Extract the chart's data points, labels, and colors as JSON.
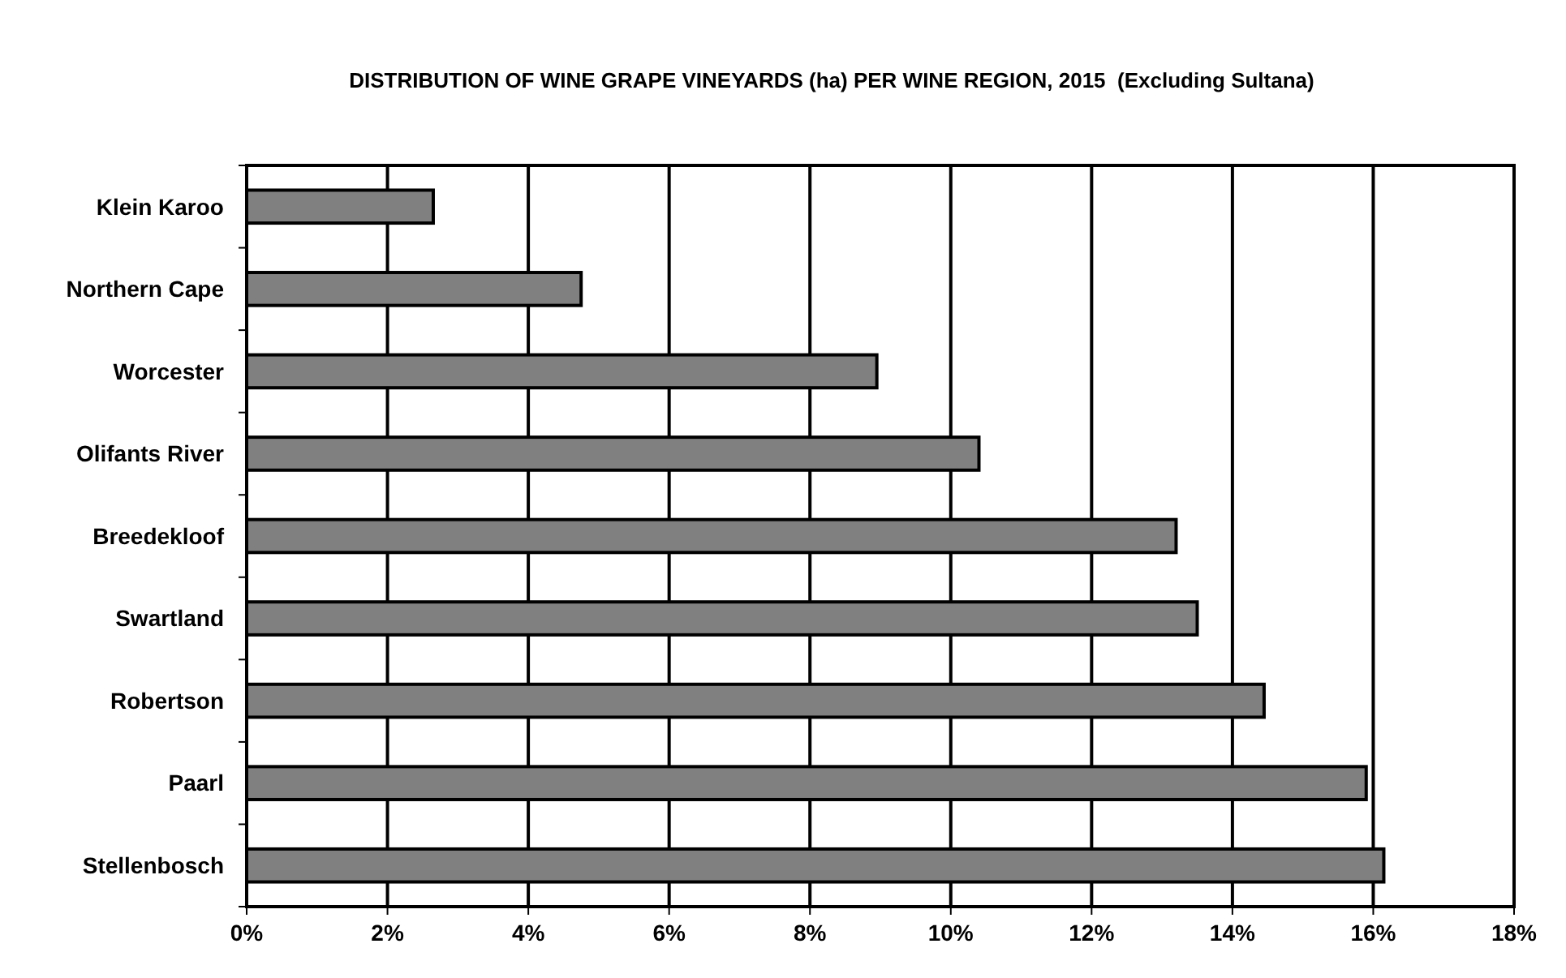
{
  "chart_data": {
    "type": "bar",
    "orientation": "horizontal",
    "title": "DISTRIBUTION OF WINE GRAPE VINEYARDS (ha) PER WINE REGION, 2015  (Excluding Sultana)",
    "categories": [
      "Klein Karoo",
      "Northern Cape",
      "Worcester",
      "Olifants River",
      "Breedekloof",
      "Swartland",
      "Robertson",
      "Paarl",
      "Stellenbosch"
    ],
    "values": [
      2.65,
      4.75,
      8.95,
      10.4,
      13.2,
      13.5,
      14.45,
      15.9,
      16.15
    ],
    "color": "#808080",
    "xlim": [
      0,
      18
    ],
    "xticks": [
      {
        "value": 0,
        "label": "0%"
      },
      {
        "value": 2,
        "label": "2%"
      },
      {
        "value": 4,
        "label": "4%"
      },
      {
        "value": 6,
        "label": "6%"
      },
      {
        "value": 8,
        "label": "8%"
      },
      {
        "value": 10,
        "label": "10%"
      },
      {
        "value": 12,
        "label": "12%"
      },
      {
        "value": 14,
        "label": "14%"
      },
      {
        "value": 16,
        "label": "16%"
      },
      {
        "value": 18,
        "label": "18%"
      }
    ],
    "grid": "x"
  }
}
